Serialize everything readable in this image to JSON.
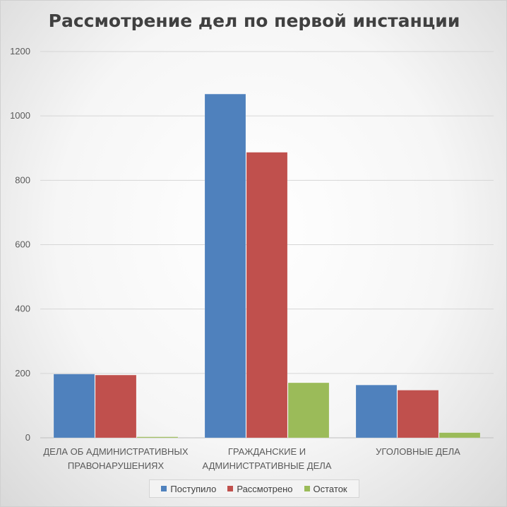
{
  "chart_data": {
    "type": "bar",
    "title": "Рассмотрение дел по первой инстанции",
    "categories": [
      [
        "ДЕЛА ОБ АДМИНИСТРАТИВНЫХ",
        "ПРАВОНАРУШЕНИЯХ"
      ],
      [
        "ГРАЖДАНСКИЕ И",
        "АДМИНИСТРАТИВНЫЕ ДЕЛА"
      ],
      [
        "УГОЛОВНЫЕ ДЕЛА"
      ]
    ],
    "series": [
      {
        "name": "Поступило",
        "color": "#4f81bd",
        "values": [
          198,
          1068,
          164
        ]
      },
      {
        "name": "Рассмотрено",
        "color": "#c0504d",
        "values": [
          195,
          887,
          148
        ]
      },
      {
        "name": "Остаток",
        "color": "#9bbb59",
        "values": [
          3,
          171,
          16
        ]
      }
    ],
    "ylim": [
      0,
      1200
    ],
    "yticks": [
      "0",
      "200",
      "400",
      "600",
      "800",
      "1000",
      "1200"
    ],
    "grid": true,
    "legend_position": "bottom"
  }
}
